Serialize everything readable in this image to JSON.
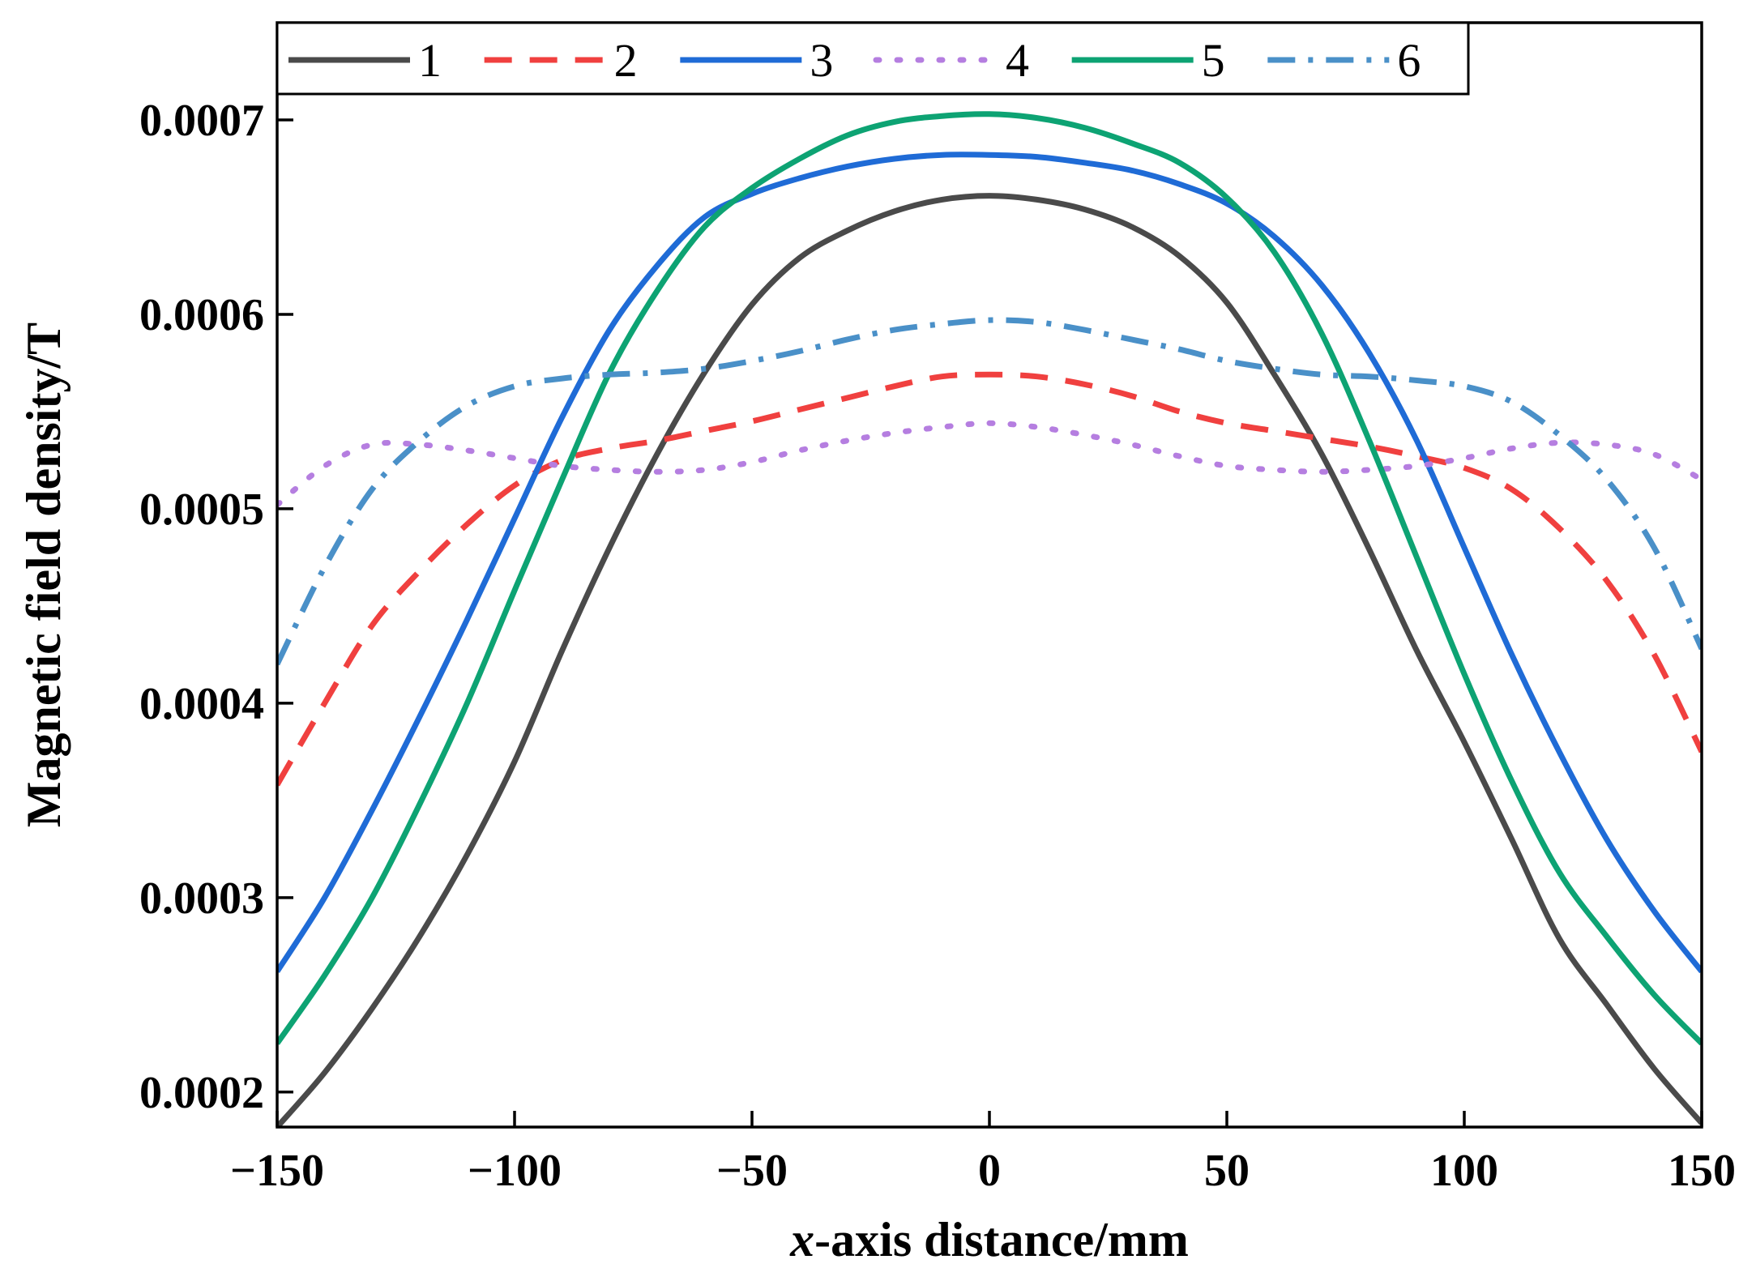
{
  "chart_data": {
    "type": "line",
    "title": "",
    "xlabel_italic": "x",
    "xlabel_rest": "-axis distance/mm",
    "ylabel": "Magnetic field density/T",
    "xlim": [
      -150,
      150
    ],
    "ylim": [
      0.000182,
      0.00075
    ],
    "xticks": [
      -150,
      -100,
      -50,
      0,
      50,
      100,
      150
    ],
    "xtick_labels": [
      "−150",
      "−100",
      "−50",
      "0",
      "50",
      "100",
      "150"
    ],
    "yticks": [
      0.0002,
      0.0003,
      0.0004,
      0.0005,
      0.0006,
      0.0007
    ],
    "ytick_labels": [
      "0.0002",
      "0.0003",
      "0.0004",
      "0.0005",
      "0.0006",
      "0.0007"
    ],
    "grid": false,
    "legend_position": "top",
    "series": [
      {
        "name": "1",
        "color": "#4a4a4a",
        "dash": "solid",
        "x": [
          -150,
          -140,
          -130,
          -120,
          -110,
          -100,
          -90,
          -80,
          -70,
          -60,
          -50,
          -40,
          -30,
          -20,
          -10,
          0,
          10,
          20,
          30,
          40,
          50,
          60,
          70,
          80,
          90,
          100,
          110,
          120,
          130,
          140,
          150
        ],
        "y": [
          0.000182,
          0.00021,
          0.000243,
          0.00028,
          0.000322,
          0.00037,
          0.000427,
          0.00048,
          0.000528,
          0.00057,
          0.000605,
          0.000629,
          0.000643,
          0.000653,
          0.000659,
          0.000661,
          0.000659,
          0.000654,
          0.000645,
          0.00063,
          0.000606,
          0.000569,
          0.000528,
          0.000479,
          0.000427,
          0.00038,
          0.00033,
          0.000279,
          0.000245,
          0.000212,
          0.000184
        ]
      },
      {
        "name": "2",
        "color": "#f0403f",
        "dash": "dashed",
        "x": [
          -150,
          -140,
          -130,
          -120,
          -110,
          -100,
          -90,
          -80,
          -70,
          -60,
          -50,
          -40,
          -30,
          -20,
          -10,
          0,
          10,
          20,
          30,
          40,
          50,
          60,
          70,
          80,
          90,
          100,
          110,
          120,
          130,
          140,
          150
        ],
        "y": [
          0.000358,
          0.0004,
          0.00044,
          0.000468,
          0.000492,
          0.000512,
          0.000525,
          0.000531,
          0.000535,
          0.00054,
          0.000545,
          0.000551,
          0.000557,
          0.000563,
          0.000568,
          0.000569,
          0.000568,
          0.000564,
          0.000558,
          0.00055,
          0.000544,
          0.00054,
          0.000536,
          0.000532,
          0.000527,
          0.000521,
          0.00051,
          0.00049,
          0.000463,
          0.000425,
          0.000375
        ]
      },
      {
        "name": "3",
        "color": "#1f6bd6",
        "dash": "solid",
        "x": [
          -150,
          -140,
          -130,
          -120,
          -110,
          -100,
          -90,
          -80,
          -70,
          -60,
          -50,
          -40,
          -30,
          -20,
          -10,
          0,
          10,
          20,
          30,
          40,
          50,
          60,
          70,
          80,
          90,
          100,
          110,
          120,
          130,
          140,
          150
        ],
        "y": [
          0.000262,
          0.0003,
          0.000345,
          0.000393,
          0.000443,
          0.000495,
          0.000547,
          0.000592,
          0.000625,
          0.00065,
          0.000662,
          0.00067,
          0.000676,
          0.00068,
          0.000682,
          0.000682,
          0.000681,
          0.000678,
          0.000674,
          0.000667,
          0.000657,
          0.00064,
          0.000615,
          0.00058,
          0.000535,
          0.00048,
          0.000425,
          0.000375,
          0.00033,
          0.000293,
          0.000262
        ]
      },
      {
        "name": "4",
        "color": "#b57ee0",
        "dash": "dotted",
        "x": [
          -150,
          -140,
          -130,
          -120,
          -110,
          -100,
          -90,
          -80,
          -70,
          -60,
          -50,
          -40,
          -30,
          -20,
          -10,
          0,
          10,
          20,
          30,
          40,
          50,
          60,
          70,
          80,
          90,
          100,
          110,
          120,
          130,
          140,
          150
        ],
        "y": [
          0.000502,
          0.000522,
          0.000533,
          0.000533,
          0.00053,
          0.000526,
          0.000522,
          0.00052,
          0.000519,
          0.00052,
          0.000524,
          0.00053,
          0.000535,
          0.000539,
          0.000542,
          0.000544,
          0.000542,
          0.000538,
          0.000533,
          0.000527,
          0.000522,
          0.00052,
          0.000519,
          0.00052,
          0.000522,
          0.000526,
          0.000531,
          0.000534,
          0.000533,
          0.000528,
          0.000515
        ]
      },
      {
        "name": "5",
        "color": "#0da373",
        "dash": "solid",
        "x": [
          -150,
          -140,
          -130,
          -120,
          -110,
          -100,
          -90,
          -80,
          -70,
          -60,
          -50,
          -40,
          -30,
          -20,
          -10,
          0,
          10,
          20,
          30,
          40,
          50,
          60,
          70,
          80,
          90,
          100,
          110,
          120,
          130,
          140,
          150
        ],
        "y": [
          0.000225,
          0.00026,
          0.0003,
          0.000348,
          0.0004,
          0.000458,
          0.000515,
          0.00057,
          0.000612,
          0.000645,
          0.000665,
          0.00068,
          0.000692,
          0.000699,
          0.000702,
          0.000703,
          0.000701,
          0.000696,
          0.000688,
          0.000678,
          0.00066,
          0.000632,
          0.00059,
          0.000535,
          0.000475,
          0.000415,
          0.00036,
          0.000313,
          0.00028,
          0.00025,
          0.000225
        ]
      },
      {
        "name": "6",
        "color": "#4a90c8",
        "dash": "dashdot",
        "x": [
          -150,
          -140,
          -130,
          -120,
          -110,
          -100,
          -90,
          -80,
          -70,
          -60,
          -50,
          -40,
          -30,
          -20,
          -10,
          0,
          10,
          20,
          30,
          40,
          50,
          60,
          70,
          80,
          90,
          100,
          110,
          120,
          130,
          140,
          150
        ],
        "y": [
          0.00042,
          0.00047,
          0.00051,
          0.000535,
          0.000553,
          0.000563,
          0.000567,
          0.000569,
          0.00057,
          0.000572,
          0.000576,
          0.000581,
          0.000587,
          0.000592,
          0.000595,
          0.000597,
          0.000596,
          0.000592,
          0.000587,
          0.000582,
          0.000576,
          0.000572,
          0.000569,
          0.000568,
          0.000566,
          0.000563,
          0.000555,
          0.000538,
          0.000515,
          0.00048,
          0.000428
        ]
      }
    ]
  }
}
